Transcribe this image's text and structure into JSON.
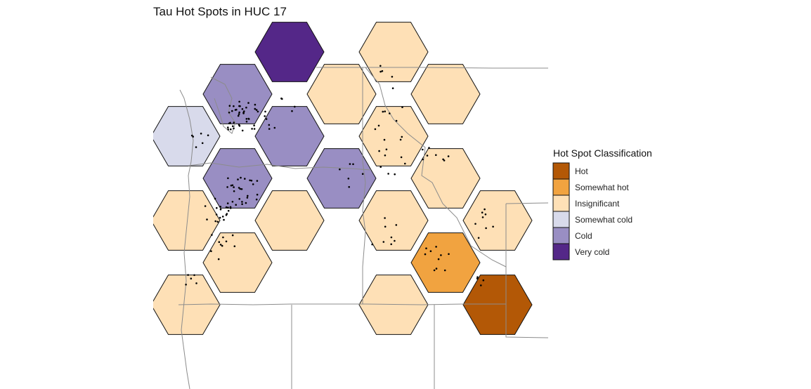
{
  "title": "Tau Hot Spots in HUC 17",
  "legend": {
    "title": "Hot Spot Classification",
    "items": [
      {
        "key": "hot",
        "label": "Hot",
        "color": "#b35806"
      },
      {
        "key": "somewhat_hot",
        "label": "Somewhat hot",
        "color": "#f1a340"
      },
      {
        "key": "insignificant",
        "label": "Insignificant",
        "color": "#fee0b6"
      },
      {
        "key": "somewhat_cold",
        "label": "Somewhat cold",
        "color": "#d8daeb"
      },
      {
        "key": "cold",
        "label": "Cold",
        "color": "#998ec3"
      },
      {
        "key": "very_cold",
        "label": "Very cold",
        "color": "#542788"
      }
    ]
  },
  "hexagons": [
    {
      "col": 0,
      "row": 0,
      "class": "very_cold"
    },
    {
      "col": -1,
      "row": 1,
      "class": "cold"
    },
    {
      "col": 1,
      "row": 1,
      "class": "insignificant"
    },
    {
      "col": 2,
      "row": 0,
      "class": "insignificant"
    },
    {
      "col": 3,
      "row": 1,
      "class": "insignificant"
    },
    {
      "col": -2,
      "row": 2,
      "class": "somewhat_cold"
    },
    {
      "col": 0,
      "row": 2,
      "class": "cold"
    },
    {
      "col": 2,
      "row": 2,
      "class": "insignificant"
    },
    {
      "col": -1,
      "row": 3,
      "class": "cold"
    },
    {
      "col": 1,
      "row": 3,
      "class": "cold"
    },
    {
      "col": 3,
      "row": 3,
      "class": "insignificant"
    },
    {
      "col": -2,
      "row": 4,
      "class": "insignificant"
    },
    {
      "col": 0,
      "row": 4,
      "class": "insignificant"
    },
    {
      "col": 2,
      "row": 4,
      "class": "insignificant"
    },
    {
      "col": 4,
      "row": 4,
      "class": "insignificant"
    },
    {
      "col": -1,
      "row": 5,
      "class": "insignificant"
    },
    {
      "col": 3,
      "row": 5,
      "class": "somewhat_hot"
    },
    {
      "col": -2,
      "row": 6,
      "class": "insignificant"
    },
    {
      "col": 2,
      "row": 6,
      "class": "insignificant"
    },
    {
      "col": 4,
      "row": 6,
      "class": "hot"
    }
  ]
}
